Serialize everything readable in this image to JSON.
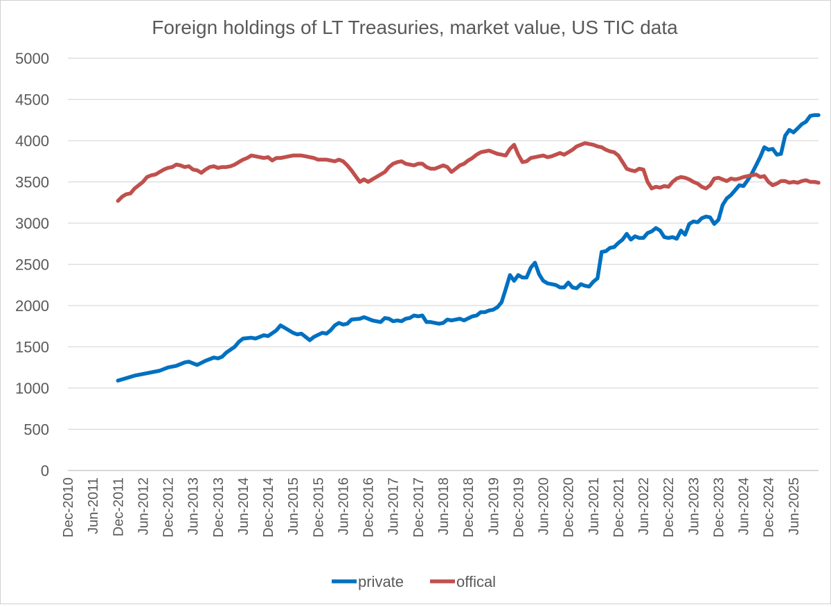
{
  "chart_data": {
    "type": "line",
    "title": "Foreign holdings of LT Treasuries, market value, US TIC data",
    "xlabel": "",
    "ylabel": "",
    "ylim": [
      0,
      5000
    ],
    "y_ticks": [
      0,
      500,
      1000,
      1500,
      2000,
      2500,
      3000,
      3500,
      4000,
      4500,
      5000
    ],
    "x_tick_labels": [
      "Dec-2010",
      "Jun-2011",
      "Dec-2011",
      "Jun-2012",
      "Dec-2012",
      "Jun-2013",
      "Dec-2013",
      "Jun-2014",
      "Dec-2014",
      "Jun-2015",
      "Dec-2015",
      "Jun-2016",
      "Dec-2016",
      "Jun-2017",
      "Dec-2017",
      "Jun-2018",
      "Dec-2018",
      "Jun-2019",
      "Dec-2019",
      "Jun-2020",
      "Dec-2020",
      "Jun-2021",
      "Dec-2021",
      "Jun-2022",
      "Dec-2022",
      "Jun-2023",
      "Dec-2023",
      "Jun-2024",
      "Dec-2024",
      "Jun-2025"
    ],
    "x_start": "Dec-2010",
    "x_unit": "months since Dec-2010",
    "x_range": [
      0,
      180
    ],
    "grid": true,
    "legend_position": "bottom",
    "series": [
      {
        "name": "private",
        "color": "#0070c0",
        "points": [
          [
            12,
            1090
          ],
          [
            14,
            1120
          ],
          [
            16,
            1150
          ],
          [
            19,
            1180
          ],
          [
            22,
            1210
          ],
          [
            24,
            1250
          ],
          [
            26,
            1270
          ],
          [
            28,
            1310
          ],
          [
            29,
            1320
          ],
          [
            31,
            1280
          ],
          [
            33,
            1330
          ],
          [
            35,
            1370
          ],
          [
            36,
            1360
          ],
          [
            37,
            1380
          ],
          [
            38,
            1430
          ],
          [
            40,
            1500
          ],
          [
            41,
            1560
          ],
          [
            42,
            1600
          ],
          [
            44,
            1610
          ],
          [
            45,
            1600
          ],
          [
            46,
            1620
          ],
          [
            47,
            1640
          ],
          [
            48,
            1630
          ],
          [
            50,
            1700
          ],
          [
            51,
            1760
          ],
          [
            52,
            1730
          ],
          [
            53,
            1700
          ],
          [
            54,
            1670
          ],
          [
            55,
            1650
          ],
          [
            56,
            1660
          ],
          [
            57,
            1620
          ],
          [
            58,
            1580
          ],
          [
            59,
            1620
          ],
          [
            61,
            1670
          ],
          [
            62,
            1660
          ],
          [
            63,
            1700
          ],
          [
            64,
            1760
          ],
          [
            65,
            1790
          ],
          [
            66,
            1770
          ],
          [
            67,
            1780
          ],
          [
            68,
            1830
          ],
          [
            70,
            1840
          ],
          [
            71,
            1860
          ],
          [
            72,
            1840
          ],
          [
            73,
            1820
          ],
          [
            75,
            1800
          ],
          [
            76,
            1850
          ],
          [
            77,
            1840
          ],
          [
            78,
            1810
          ],
          [
            79,
            1820
          ],
          [
            80,
            1810
          ],
          [
            81,
            1840
          ],
          [
            82,
            1850
          ],
          [
            83,
            1880
          ],
          [
            84,
            1870
          ],
          [
            85,
            1880
          ],
          [
            86,
            1800
          ],
          [
            87,
            1800
          ],
          [
            89,
            1780
          ],
          [
            90,
            1790
          ],
          [
            91,
            1830
          ],
          [
            92,
            1820
          ],
          [
            93,
            1830
          ],
          [
            94,
            1840
          ],
          [
            95,
            1820
          ],
          [
            97,
            1870
          ],
          [
            98,
            1880
          ],
          [
            99,
            1920
          ],
          [
            100,
            1920
          ],
          [
            101,
            1940
          ],
          [
            102,
            1950
          ],
          [
            103,
            1980
          ],
          [
            104,
            2040
          ],
          [
            105,
            2200
          ],
          [
            106,
            2370
          ],
          [
            107,
            2300
          ],
          [
            108,
            2370
          ],
          [
            109,
            2340
          ],
          [
            110,
            2340
          ],
          [
            111,
            2460
          ],
          [
            112,
            2520
          ],
          [
            113,
            2380
          ],
          [
            114,
            2300
          ],
          [
            115,
            2270
          ],
          [
            116,
            2260
          ],
          [
            117,
            2250
          ],
          [
            118,
            2220
          ],
          [
            119,
            2220
          ],
          [
            120,
            2280
          ],
          [
            121,
            2220
          ],
          [
            122,
            2210
          ],
          [
            123,
            2260
          ],
          [
            124,
            2240
          ],
          [
            125,
            2230
          ],
          [
            126,
            2290
          ],
          [
            127,
            2330
          ],
          [
            128,
            2650
          ],
          [
            129,
            2660
          ],
          [
            130,
            2700
          ],
          [
            131,
            2710
          ],
          [
            132,
            2760
          ],
          [
            133,
            2800
          ],
          [
            134,
            2870
          ],
          [
            135,
            2800
          ],
          [
            136,
            2840
          ],
          [
            137,
            2820
          ],
          [
            138,
            2820
          ],
          [
            139,
            2880
          ],
          [
            140,
            2900
          ],
          [
            141,
            2940
          ],
          [
            142,
            2910
          ],
          [
            143,
            2830
          ],
          [
            144,
            2820
          ],
          [
            145,
            2830
          ],
          [
            146,
            2810
          ],
          [
            147,
            2910
          ],
          [
            148,
            2860
          ],
          [
            149,
            2990
          ],
          [
            150,
            3020
          ],
          [
            151,
            3010
          ],
          [
            152,
            3060
          ],
          [
            153,
            3080
          ],
          [
            154,
            3070
          ],
          [
            155,
            2990
          ],
          [
            156,
            3040
          ],
          [
            157,
            3220
          ],
          [
            158,
            3300
          ],
          [
            159,
            3340
          ],
          [
            160,
            3400
          ],
          [
            161,
            3460
          ],
          [
            162,
            3450
          ],
          [
            163,
            3520
          ],
          [
            164,
            3600
          ],
          [
            165,
            3700
          ],
          [
            166,
            3800
          ],
          [
            167,
            3920
          ],
          [
            168,
            3890
          ],
          [
            169,
            3900
          ],
          [
            170,
            3830
          ],
          [
            171,
            3840
          ],
          [
            172,
            4060
          ],
          [
            173,
            4130
          ],
          [
            174,
            4100
          ],
          [
            175,
            4150
          ],
          [
            176,
            4200
          ],
          [
            177,
            4230
          ],
          [
            178,
            4300
          ],
          [
            179,
            4310
          ],
          [
            180,
            4310
          ]
        ]
      },
      {
        "name": "offical",
        "color": "#c0504d",
        "points": [
          [
            12,
            3270
          ],
          [
            13,
            3320
          ],
          [
            14,
            3350
          ],
          [
            15,
            3360
          ],
          [
            16,
            3420
          ],
          [
            17,
            3460
          ],
          [
            18,
            3500
          ],
          [
            19,
            3560
          ],
          [
            20,
            3580
          ],
          [
            21,
            3590
          ],
          [
            22,
            3620
          ],
          [
            23,
            3650
          ],
          [
            24,
            3670
          ],
          [
            25,
            3680
          ],
          [
            26,
            3710
          ],
          [
            27,
            3700
          ],
          [
            28,
            3680
          ],
          [
            29,
            3690
          ],
          [
            30,
            3650
          ],
          [
            31,
            3640
          ],
          [
            32,
            3610
          ],
          [
            33,
            3650
          ],
          [
            34,
            3680
          ],
          [
            35,
            3690
          ],
          [
            36,
            3670
          ],
          [
            37,
            3680
          ],
          [
            38,
            3680
          ],
          [
            39,
            3690
          ],
          [
            40,
            3710
          ],
          [
            41,
            3740
          ],
          [
            42,
            3770
          ],
          [
            43,
            3790
          ],
          [
            44,
            3820
          ],
          [
            45,
            3810
          ],
          [
            46,
            3800
          ],
          [
            47,
            3790
          ],
          [
            48,
            3800
          ],
          [
            49,
            3760
          ],
          [
            50,
            3790
          ],
          [
            51,
            3790
          ],
          [
            52,
            3800
          ],
          [
            53,
            3810
          ],
          [
            54,
            3820
          ],
          [
            55,
            3820
          ],
          [
            56,
            3820
          ],
          [
            57,
            3810
          ],
          [
            58,
            3800
          ],
          [
            59,
            3790
          ],
          [
            60,
            3770
          ],
          [
            61,
            3770
          ],
          [
            62,
            3770
          ],
          [
            63,
            3760
          ],
          [
            64,
            3750
          ],
          [
            65,
            3770
          ],
          [
            66,
            3750
          ],
          [
            67,
            3700
          ],
          [
            68,
            3640
          ],
          [
            69,
            3570
          ],
          [
            70,
            3500
          ],
          [
            71,
            3530
          ],
          [
            72,
            3500
          ],
          [
            73,
            3530
          ],
          [
            74,
            3560
          ],
          [
            75,
            3590
          ],
          [
            76,
            3620
          ],
          [
            77,
            3680
          ],
          [
            78,
            3720
          ],
          [
            79,
            3740
          ],
          [
            80,
            3750
          ],
          [
            81,
            3720
          ],
          [
            82,
            3710
          ],
          [
            83,
            3700
          ],
          [
            84,
            3720
          ],
          [
            85,
            3720
          ],
          [
            86,
            3680
          ],
          [
            87,
            3660
          ],
          [
            88,
            3660
          ],
          [
            89,
            3680
          ],
          [
            90,
            3700
          ],
          [
            91,
            3680
          ],
          [
            92,
            3620
          ],
          [
            93,
            3660
          ],
          [
            94,
            3700
          ],
          [
            95,
            3720
          ],
          [
            96,
            3760
          ],
          [
            97,
            3790
          ],
          [
            98,
            3830
          ],
          [
            99,
            3860
          ],
          [
            100,
            3870
          ],
          [
            101,
            3880
          ],
          [
            102,
            3860
          ],
          [
            103,
            3840
          ],
          [
            104,
            3830
          ],
          [
            105,
            3820
          ],
          [
            106,
            3900
          ],
          [
            107,
            3950
          ],
          [
            108,
            3830
          ],
          [
            109,
            3740
          ],
          [
            110,
            3750
          ],
          [
            111,
            3790
          ],
          [
            112,
            3800
          ],
          [
            113,
            3810
          ],
          [
            114,
            3820
          ],
          [
            115,
            3800
          ],
          [
            116,
            3810
          ],
          [
            117,
            3830
          ],
          [
            118,
            3850
          ],
          [
            119,
            3830
          ],
          [
            120,
            3860
          ],
          [
            121,
            3890
          ],
          [
            122,
            3930
          ],
          [
            123,
            3950
          ],
          [
            124,
            3970
          ],
          [
            125,
            3960
          ],
          [
            126,
            3950
          ],
          [
            127,
            3930
          ],
          [
            128,
            3920
          ],
          [
            129,
            3890
          ],
          [
            130,
            3870
          ],
          [
            131,
            3860
          ],
          [
            132,
            3820
          ],
          [
            133,
            3740
          ],
          [
            134,
            3660
          ],
          [
            135,
            3640
          ],
          [
            136,
            3630
          ],
          [
            137,
            3660
          ],
          [
            138,
            3650
          ],
          [
            139,
            3500
          ],
          [
            140,
            3420
          ],
          [
            141,
            3440
          ],
          [
            142,
            3430
          ],
          [
            143,
            3450
          ],
          [
            144,
            3440
          ],
          [
            145,
            3500
          ],
          [
            146,
            3540
          ],
          [
            147,
            3560
          ],
          [
            148,
            3550
          ],
          [
            149,
            3530
          ],
          [
            150,
            3500
          ],
          [
            151,
            3480
          ],
          [
            152,
            3440
          ],
          [
            153,
            3420
          ],
          [
            154,
            3460
          ],
          [
            155,
            3540
          ],
          [
            156,
            3550
          ],
          [
            157,
            3530
          ],
          [
            158,
            3510
          ],
          [
            159,
            3540
          ],
          [
            160,
            3530
          ],
          [
            161,
            3540
          ],
          [
            162,
            3560
          ],
          [
            163,
            3570
          ],
          [
            164,
            3580
          ],
          [
            165,
            3590
          ],
          [
            166,
            3560
          ],
          [
            167,
            3570
          ],
          [
            168,
            3500
          ],
          [
            169,
            3460
          ],
          [
            170,
            3480
          ],
          [
            171,
            3510
          ],
          [
            172,
            3510
          ],
          [
            173,
            3490
          ],
          [
            174,
            3500
          ],
          [
            175,
            3490
          ],
          [
            176,
            3510
          ],
          [
            177,
            3520
          ],
          [
            178,
            3500
          ],
          [
            179,
            3500
          ],
          [
            180,
            3490
          ]
        ]
      }
    ]
  }
}
